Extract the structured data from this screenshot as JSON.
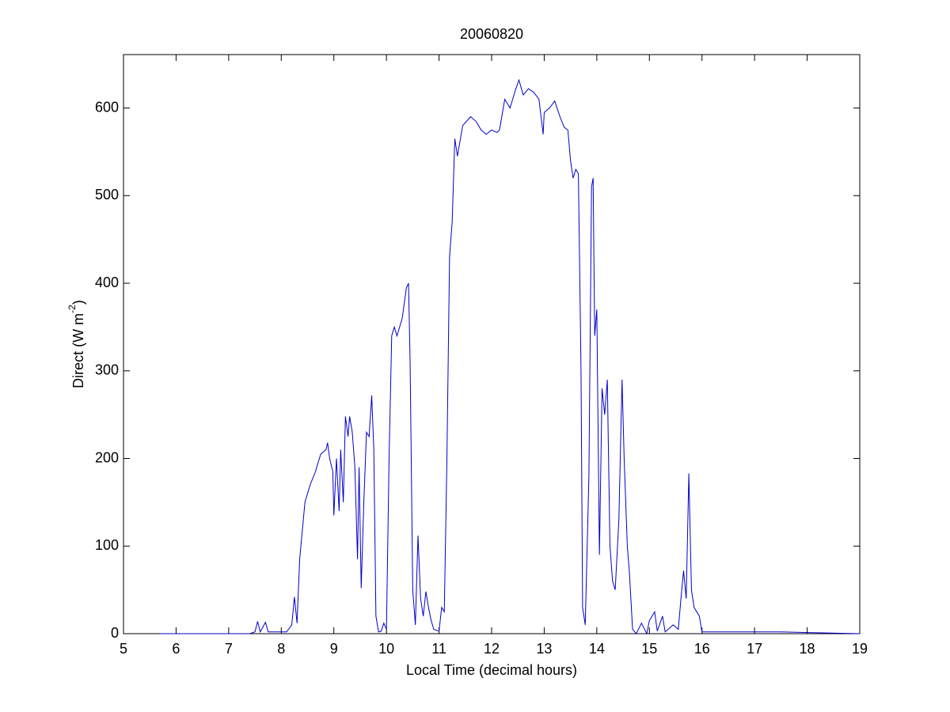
{
  "chart_data": {
    "type": "line",
    "title": "20060820",
    "xlabel": "Local Time (decimal hours)",
    "ylabel": [
      "Direct (W m",
      "-2",
      ")"
    ],
    "xlim": [
      5,
      19
    ],
    "xticks": [
      5,
      6,
      7,
      8,
      9,
      10,
      11,
      12,
      13,
      14,
      15,
      16,
      17,
      18,
      19
    ],
    "ylim": [
      0,
      661
    ],
    "yticks": [
      0,
      100,
      200,
      300,
      400,
      500,
      600
    ],
    "grid": false,
    "series": [
      {
        "color": "#0000cc",
        "x": [
          5.7,
          7.4,
          7.5,
          7.55,
          7.6,
          7.7,
          7.75,
          8.1,
          8.2,
          8.25,
          8.3,
          8.35,
          8.45,
          8.55,
          8.65,
          8.75,
          8.85,
          8.88,
          8.92,
          8.98,
          9.0,
          9.05,
          9.1,
          9.13,
          9.18,
          9.22,
          9.27,
          9.3,
          9.35,
          9.4,
          9.45,
          9.48,
          9.52,
          9.57,
          9.62,
          9.67,
          9.72,
          9.76,
          9.8,
          9.85,
          9.9,
          9.95,
          10.0,
          10.05,
          10.1,
          10.15,
          10.2,
          10.3,
          10.38,
          10.42,
          10.45,
          10.5,
          10.55,
          10.6,
          10.65,
          10.7,
          10.75,
          10.8,
          10.85,
          10.9,
          11.0,
          11.05,
          11.1,
          11.15,
          11.2,
          11.25,
          11.3,
          11.35,
          11.45,
          11.6,
          11.7,
          11.8,
          11.9,
          12.0,
          12.1,
          12.15,
          12.25,
          12.35,
          12.45,
          12.52,
          12.6,
          12.7,
          12.8,
          12.9,
          12.98,
          13.0,
          13.1,
          13.2,
          13.3,
          13.38,
          13.45,
          13.5,
          13.55,
          13.6,
          13.65,
          13.7,
          13.73,
          13.78,
          13.85,
          13.9,
          13.93,
          13.96,
          14.0,
          14.05,
          14.1,
          14.15,
          14.2,
          14.25,
          14.3,
          14.35,
          14.42,
          14.48,
          14.52,
          14.58,
          14.62,
          14.68,
          14.75,
          14.85,
          14.95,
          15.0,
          15.1,
          15.15,
          15.25,
          15.3,
          15.45,
          15.55,
          15.6,
          15.65,
          15.7,
          15.75,
          15.8,
          15.85,
          15.9,
          15.95,
          16.0,
          17.5,
          19.0
        ],
        "values": [
          0,
          0,
          2,
          14,
          2,
          13,
          2,
          2,
          10,
          42,
          12,
          85,
          150,
          170,
          185,
          205,
          210,
          218,
          200,
          185,
          135,
          200,
          140,
          210,
          150,
          248,
          225,
          248,
          230,
          190,
          85,
          190,
          52,
          150,
          230,
          225,
          272,
          210,
          20,
          2,
          3,
          12,
          5,
          200,
          340,
          350,
          340,
          360,
          395,
          400,
          310,
          50,
          10,
          112,
          40,
          20,
          48,
          30,
          15,
          5,
          3,
          30,
          25,
          200,
          430,
          470,
          565,
          545,
          580,
          590,
          585,
          575,
          570,
          575,
          572,
          575,
          610,
          600,
          620,
          632,
          615,
          622,
          618,
          610,
          570,
          595,
          600,
          608,
          590,
          578,
          575,
          540,
          520,
          530,
          525,
          300,
          30,
          10,
          180,
          510,
          520,
          340,
          370,
          90,
          280,
          250,
          290,
          100,
          60,
          50,
          130,
          290,
          200,
          100,
          70,
          5,
          0,
          12,
          0,
          15,
          25,
          3,
          20,
          2,
          10,
          5,
          40,
          72,
          40,
          183,
          50,
          30,
          25,
          20,
          2,
          2,
          0
        ]
      }
    ]
  }
}
